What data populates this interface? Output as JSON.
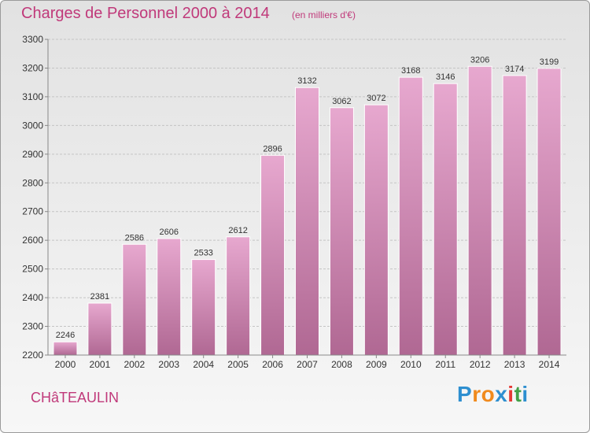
{
  "header": {
    "title": "Charges de Personnel 2000 à 2014",
    "subtitle": "(en milliers d'€)"
  },
  "footer": {
    "city": "CHâTEAULIN",
    "logo_letters": [
      "P",
      "r",
      "o",
      "x",
      "i",
      "t",
      "i"
    ],
    "logo_colors": [
      "#2e8fd0",
      "#f08a1d",
      "#f08a1d",
      "#2e8fd0",
      "#e53935",
      "#43a047",
      "#2e8fd0"
    ]
  },
  "colors": {
    "title": "#c0397a",
    "bar_top": "#e7a8cf",
    "bar_bottom": "#b06893",
    "grid": "#c4c4c4",
    "axis": "#888888",
    "text": "#333333"
  },
  "chart_data": {
    "type": "bar",
    "categories": [
      "2000",
      "2001",
      "2002",
      "2003",
      "2004",
      "2005",
      "2006",
      "2007",
      "2008",
      "2009",
      "2010",
      "2011",
      "2012",
      "2013",
      "2014"
    ],
    "values": [
      2246,
      2381,
      2586,
      2606,
      2533,
      2612,
      2896,
      3132,
      3062,
      3072,
      3168,
      3146,
      3206,
      3174,
      3199
    ],
    "title": "Charges de Personnel 2000 à 2014",
    "xlabel": "",
    "ylabel": "",
    "ylim": [
      2200,
      3300
    ],
    "yticks": [
      2200,
      2300,
      2400,
      2500,
      2600,
      2700,
      2800,
      2900,
      3000,
      3100,
      3200,
      3300
    ],
    "grid": true,
    "data_labels": true
  }
}
